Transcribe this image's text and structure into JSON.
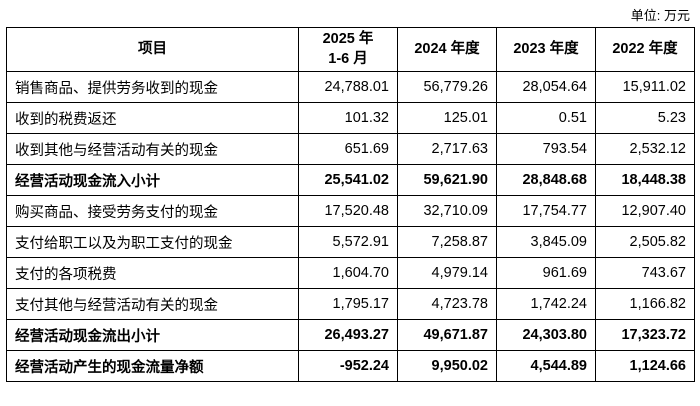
{
  "unit_label": "单位: 万元",
  "table": {
    "headers": [
      "项目",
      "2025 年\n1-6 月",
      "2024 年度",
      "2023 年度",
      "2022 年度"
    ],
    "rows": [
      {
        "label": "销售商品、提供劳务收到的现金",
        "bold": false,
        "values": [
          "24,788.01",
          "56,779.26",
          "28,054.64",
          "15,911.02"
        ]
      },
      {
        "label": "收到的税费返还",
        "bold": false,
        "values": [
          "101.32",
          "125.01",
          "0.51",
          "5.23"
        ]
      },
      {
        "label": "收到其他与经营活动有关的现金",
        "bold": false,
        "values": [
          "651.69",
          "2,717.63",
          "793.54",
          "2,532.12"
        ]
      },
      {
        "label": "经营活动现金流入小计",
        "bold": true,
        "values": [
          "25,541.02",
          "59,621.90",
          "28,848.68",
          "18,448.38"
        ]
      },
      {
        "label": "购买商品、接受劳务支付的现金",
        "bold": false,
        "values": [
          "17,520.48",
          "32,710.09",
          "17,754.77",
          "12,907.40"
        ]
      },
      {
        "label": "支付给职工以及为职工支付的现金",
        "bold": false,
        "values": [
          "5,572.91",
          "7,258.87",
          "3,845.09",
          "2,505.82"
        ]
      },
      {
        "label": "支付的各项税费",
        "bold": false,
        "values": [
          "1,604.70",
          "4,979.14",
          "961.69",
          "743.67"
        ]
      },
      {
        "label": "支付其他与经营活动有关的现金",
        "bold": false,
        "values": [
          "1,795.17",
          "4,723.78",
          "1,742.24",
          "1,166.82"
        ]
      },
      {
        "label": "经营活动现金流出小计",
        "bold": true,
        "values": [
          "26,493.27",
          "49,671.87",
          "24,303.80",
          "17,323.72"
        ]
      },
      {
        "label": "经营活动产生的现金流量净额",
        "bold": true,
        "values": [
          "-952.24",
          "9,950.02",
          "4,544.89",
          "1,124.66"
        ]
      }
    ]
  }
}
